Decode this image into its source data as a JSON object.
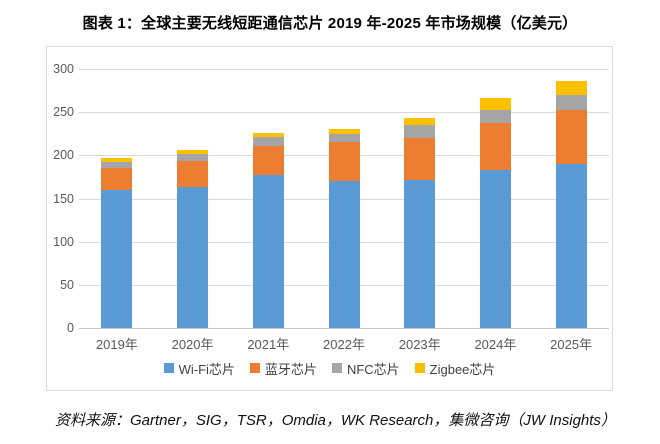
{
  "title": "图表 1：全球主要无线短距通信芯片 2019 年-2025 年市场规模（亿美元）",
  "source_note": "资料来源：Gartner，SIG，TSR，Omdia，WK Research，集微咨询（JW Insights）",
  "colors": {
    "wifi": "#5B9BD5",
    "bluetooth": "#ED7D31",
    "nfc": "#A5A5A5",
    "zigbee": "#FFC000",
    "gridline": "#D9D9D9",
    "axis_line": "#C6C6C6",
    "axis_text": "#595959",
    "legend_text": "#404040",
    "panel_border": "#D9D9D9"
  },
  "chart_data": {
    "type": "bar",
    "stacked": true,
    "title": "图表 1：全球主要无线短距通信芯片 2019 年-2025 年市场规模（亿美元）",
    "categories": [
      "2019年",
      "2020年",
      "2021年",
      "2022年",
      "2023年",
      "2024年",
      "2025年"
    ],
    "series": [
      {
        "key": "wifi",
        "name": "Wi-Fi芯片",
        "color": "#5B9BD5",
        "values": [
          160,
          163,
          177,
          170,
          172,
          183,
          190
        ]
      },
      {
        "key": "bluetooth",
        "name": "蓝牙芯片",
        "color": "#ED7D31",
        "values": [
          25,
          30,
          34,
          45,
          48,
          55,
          63
        ]
      },
      {
        "key": "nfc",
        "name": "NFC芯片",
        "color": "#A5A5A5",
        "values": [
          7,
          9,
          10,
          10,
          15,
          15,
          17
        ]
      },
      {
        "key": "zigbee",
        "name": "Zigbee芯片",
        "color": "#FFC000",
        "values": [
          5,
          4,
          5,
          6,
          8,
          13,
          16
        ]
      }
    ],
    "totals": [
      197,
      206,
      226,
      231,
      243,
      266,
      286
    ],
    "xlabel": "",
    "ylabel": "",
    "ylim": [
      0,
      300
    ],
    "yticks": [
      0,
      50,
      100,
      150,
      200,
      250,
      300
    ],
    "grid": true,
    "legend_position": "bottom"
  }
}
